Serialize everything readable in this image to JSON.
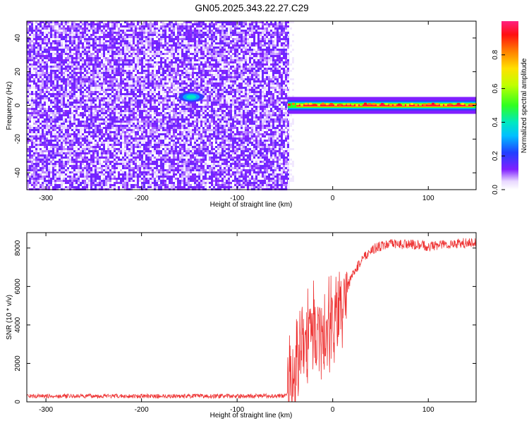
{
  "figure": {
    "title": "GN05.2025.343.22.27.C29"
  },
  "chart_data": [
    {
      "type": "heatmap",
      "name": "spectrogram",
      "xlabel": "Height of straight line (km)",
      "ylabel": "Frequency (Hz)",
      "xlim": [
        -320,
        150
      ],
      "ylim": [
        -50,
        50
      ],
      "xticks": [
        -300,
        -200,
        -100,
        0,
        100
      ],
      "yticks": [
        -40,
        -20,
        0,
        20,
        40
      ],
      "colorbar": {
        "label": "Normalized spectral amplitude",
        "range": [
          0,
          1
        ],
        "ticks": [
          0.0,
          0.2,
          0.4,
          0.6,
          0.8
        ],
        "tick_labels": [
          "0.0",
          "0.2",
          "0.4",
          "0.6",
          "0.8"
        ]
      },
      "features": {
        "noise_region_x": [
          -320,
          -47
        ],
        "noise_amplitude_typical": 0.1,
        "blob": {
          "x": -148,
          "y": 5,
          "amplitude": 0.45
        },
        "signal_region_x": [
          -47,
          150
        ],
        "signal_frequency_hz": 0,
        "signal_amplitude": 0.95
      }
    },
    {
      "type": "line",
      "name": "snr",
      "xlabel": "Height of straight line (km)",
      "ylabel": "SNR (10 * v/v)",
      "xlim": [
        -320,
        150
      ],
      "ylim": [
        0,
        8800
      ],
      "xticks": [
        -300,
        -200,
        -100,
        0,
        100
      ],
      "yticks": [
        0,
        2000,
        4000,
        6000,
        8000
      ],
      "color": "#ee3333",
      "series": [
        {
          "name": "SNR",
          "x": [
            -320,
            -200,
            -100,
            -50,
            -45,
            -40,
            -35,
            -30,
            -25,
            -20,
            -15,
            -10,
            -5,
            0,
            5,
            10,
            15,
            20,
            30,
            40,
            50,
            60,
            80,
            100,
            120,
            150
          ],
          "values": [
            300,
            300,
            300,
            320,
            600,
            1500,
            2800,
            3400,
            3900,
            3900,
            4000,
            3700,
            3600,
            3900,
            4500,
            5200,
            5900,
            6500,
            7400,
            7900,
            8100,
            8200,
            8200,
            8100,
            8200,
            8300
          ]
        }
      ]
    }
  ]
}
